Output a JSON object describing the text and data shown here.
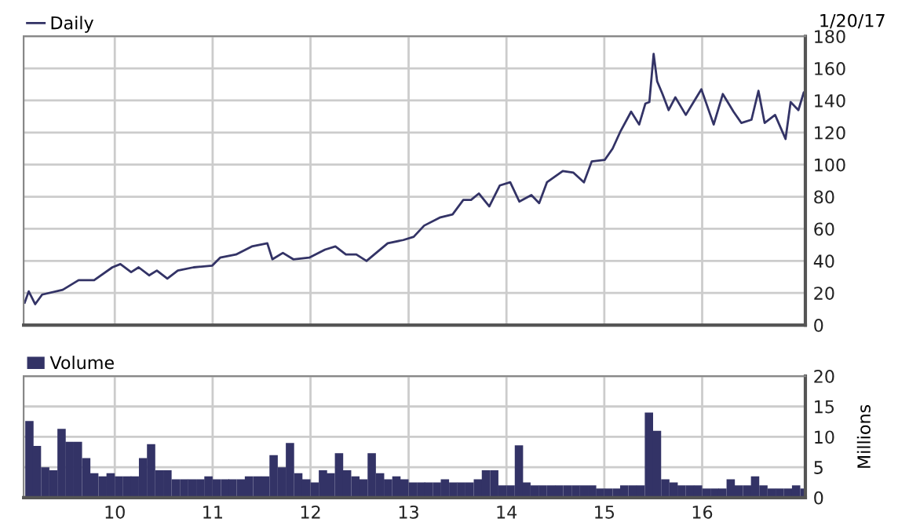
{
  "chart_data": [
    {
      "type": "line",
      "annotations": [
        "1/20/17"
      ],
      "legend": "top left",
      "grid": true,
      "tick_labels": "y",
      "xlim": [
        "2009-01-26",
        "2017-01-20"
      ],
      "xticks": [
        {
          "value": "2010-01-01",
          "label": null
        },
        {
          "value": "2011-01-01",
          "label": null
        },
        {
          "value": "2012-01-01",
          "label": null
        },
        {
          "value": "2013-01-01",
          "label": null
        },
        {
          "value": "2014-01-01",
          "label": null
        },
        {
          "value": "2015-01-01",
          "label": null
        },
        {
          "value": "2016-01-01",
          "label": null
        }
      ],
      "ylim": [
        0,
        180
      ],
      "yticks": [
        0,
        20,
        40,
        60,
        80,
        100,
        120,
        140,
        160,
        180
      ],
      "series": [
        {
          "name": "Daily",
          "color": "#333366",
          "x": [
            "2009-01-30",
            "2009-02-14",
            "2009-03-10",
            "2009-04-05",
            "2009-06-21",
            "2009-08-19",
            "2009-10-16",
            "2009-12-23",
            "2010-01-22",
            "2010-03-03",
            "2010-03-31",
            "2010-05-09",
            "2010-06-07",
            "2010-07-16",
            "2010-08-24",
            "2010-10-22",
            "2010-12-30",
            "2011-01-29",
            "2011-03-29",
            "2011-05-27",
            "2011-07-24",
            "2011-08-12",
            "2011-09-20",
            "2011-10-29",
            "2011-12-27",
            "2012-02-24",
            "2012-04-03",
            "2012-05-12",
            "2012-06-20",
            "2012-07-28",
            "2012-10-15",
            "2012-12-12",
            "2013-01-20",
            "2013-02-28",
            "2013-04-27",
            "2013-06-14",
            "2013-07-24",
            "2013-08-22",
            "2013-09-20",
            "2013-10-29",
            "2013-12-07",
            "2014-01-15",
            "2014-02-18",
            "2014-04-04",
            "2014-05-03",
            "2014-06-01",
            "2014-07-30",
            "2014-09-08",
            "2014-10-17",
            "2014-11-15",
            "2015-01-03",
            "2015-02-01",
            "2015-03-03",
            "2015-04-11",
            "2015-05-11",
            "2015-06-03",
            "2015-06-18",
            "2015-07-04",
            "2015-07-17",
            "2015-08-06",
            "2015-08-29",
            "2015-09-23",
            "2015-11-01",
            "2015-11-30",
            "2015-12-29",
            "2016-02-13",
            "2016-03-18",
            "2016-04-27",
            "2016-05-26",
            "2016-07-03",
            "2016-07-29",
            "2016-08-21",
            "2016-09-29",
            "2016-11-07",
            "2016-11-26",
            "2016-12-25",
            "2017-01-14",
            "2017-01-20"
          ],
          "values": [
            14,
            21,
            13,
            19,
            22,
            28,
            28,
            36,
            38,
            33,
            36,
            31,
            34,
            29,
            34,
            36,
            37,
            42,
            44,
            49,
            51,
            41,
            45,
            41,
            42,
            47,
            49,
            44,
            44,
            40,
            51,
            53,
            55,
            62,
            67,
            69,
            78,
            78,
            82,
            74,
            87,
            89,
            77,
            81,
            76,
            89,
            96,
            95,
            89,
            102,
            103,
            110,
            121,
            133,
            125,
            138,
            139,
            169,
            152,
            144,
            134,
            142,
            131,
            139,
            147,
            125,
            144,
            133,
            126,
            128,
            146,
            126,
            131,
            116,
            139,
            134,
            145,
            143
          ]
        }
      ]
    },
    {
      "type": "bar",
      "legend": "top left",
      "grid": true,
      "y2label": "Millions",
      "xlim": [
        "2009-01-26",
        "2017-01-20"
      ],
      "xticks": [
        {
          "value": "2010-01-01",
          "label": "10"
        },
        {
          "value": "2011-01-01",
          "label": "11"
        },
        {
          "value": "2012-01-01",
          "label": "12"
        },
        {
          "value": "2013-01-01",
          "label": "13"
        },
        {
          "value": "2014-01-01",
          "label": "14"
        },
        {
          "value": "2015-01-01",
          "label": "15"
        },
        {
          "value": "2016-01-01",
          "label": "16"
        }
      ],
      "ylim": [
        0,
        20
      ],
      "yticks": [
        0,
        5,
        10,
        15,
        20
      ],
      "series": [
        {
          "name": "Volume",
          "color": "#333366",
          "x": [
            "2009-02",
            "2009-03",
            "2009-04",
            "2009-05",
            "2009-06",
            "2009-07",
            "2009-08",
            "2009-09",
            "2009-10",
            "2009-11",
            "2009-12",
            "2010-01",
            "2010-02",
            "2010-03",
            "2010-04",
            "2010-05",
            "2010-06",
            "2010-07",
            "2010-08",
            "2010-09",
            "2010-10",
            "2010-11",
            "2010-12",
            "2011-01",
            "2011-02",
            "2011-03",
            "2011-04",
            "2011-05",
            "2011-06",
            "2011-07",
            "2011-08",
            "2011-09",
            "2011-10",
            "2011-11",
            "2011-12",
            "2012-01",
            "2012-02",
            "2012-03",
            "2012-04",
            "2012-05",
            "2012-06",
            "2012-07",
            "2012-08",
            "2012-09",
            "2012-10",
            "2012-11",
            "2012-12",
            "2013-01",
            "2013-02",
            "2013-03",
            "2013-04",
            "2013-05",
            "2013-06",
            "2013-07",
            "2013-08",
            "2013-09",
            "2013-10",
            "2013-11",
            "2013-12",
            "2014-01",
            "2014-02",
            "2014-03",
            "2014-04",
            "2014-05",
            "2014-06",
            "2014-07",
            "2014-08",
            "2014-09",
            "2014-10",
            "2014-11",
            "2014-12",
            "2015-01",
            "2015-02",
            "2015-03",
            "2015-04",
            "2015-05",
            "2015-06",
            "2015-07",
            "2015-08",
            "2015-09",
            "2015-10",
            "2015-11",
            "2015-12",
            "2016-01",
            "2016-02",
            "2016-03",
            "2016-04",
            "2016-05",
            "2016-06",
            "2016-07",
            "2016-08",
            "2016-09",
            "2016-10",
            "2016-11",
            "2016-12",
            "2017-01"
          ],
          "values": [
            12.6,
            8.5,
            5,
            4.5,
            11.3,
            9.2,
            9.2,
            6.5,
            4,
            3.5,
            4,
            3.5,
            3.5,
            3.5,
            6.5,
            8.8,
            4.5,
            4.5,
            3,
            3,
            3,
            3,
            3.5,
            3,
            3,
            3,
            3,
            3.5,
            3.5,
            3.5,
            7,
            5,
            9,
            4,
            3,
            2.5,
            4.5,
            4,
            7.3,
            4.5,
            3.5,
            3,
            7.3,
            4,
            3,
            3.5,
            3,
            2.5,
            2.5,
            2.5,
            2.5,
            3,
            2.5,
            2.5,
            2.5,
            3,
            4.5,
            4.5,
            2,
            2,
            8.6,
            2.5,
            2,
            2,
            2,
            2,
            2,
            2,
            2,
            2,
            1.5,
            1.5,
            1.5,
            2,
            2,
            2,
            14,
            11,
            3,
            2.5,
            2,
            2,
            2,
            1.5,
            1.5,
            1.5,
            3,
            2,
            2,
            3.5,
            2,
            1.5,
            1.5,
            1.5,
            2,
            1.5
          ]
        }
      ]
    }
  ]
}
